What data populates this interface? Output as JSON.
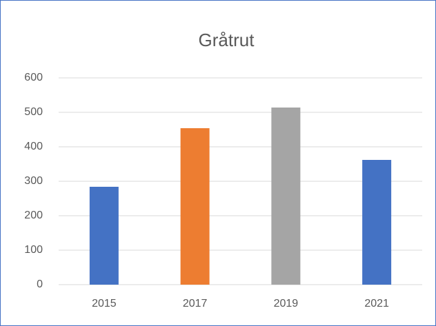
{
  "chart_data": {
    "type": "bar",
    "title": "Gråtrut",
    "categories": [
      "2015",
      "2017",
      "2019",
      "2021"
    ],
    "values": [
      284,
      454,
      514,
      362
    ],
    "colors": [
      "#4472c4",
      "#ed7d31",
      "#a5a5a5",
      "#4472c4"
    ],
    "ylim": [
      0,
      600
    ],
    "yticks": [
      0,
      100,
      200,
      300,
      400,
      500,
      600
    ],
    "grid": true
  }
}
